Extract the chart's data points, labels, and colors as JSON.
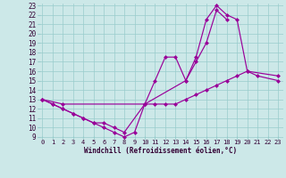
{
  "xlabel": "Windchill (Refroidissement éolien,°C)",
  "bg_color": "#cce8e8",
  "grid_color": "#99cccc",
  "line_color": "#990099",
  "xmin": -0.5,
  "xmax": 23.5,
  "ymin": 8.8,
  "ymax": 23.2,
  "xticks": [
    0,
    1,
    2,
    3,
    4,
    5,
    6,
    7,
    8,
    9,
    10,
    11,
    12,
    13,
    14,
    15,
    16,
    17,
    18,
    19,
    20,
    21,
    22,
    23
  ],
  "yticks": [
    9,
    10,
    11,
    12,
    13,
    14,
    15,
    16,
    17,
    18,
    19,
    20,
    21,
    22,
    23
  ],
  "curve_A_x": [
    0,
    1,
    2,
    3,
    4,
    5,
    6,
    7,
    8,
    9,
    10,
    11,
    12,
    13,
    14,
    15,
    16,
    17,
    18,
    19,
    20,
    21,
    23
  ],
  "curve_A_y": [
    13.0,
    12.5,
    12.0,
    11.5,
    11.0,
    10.5,
    10.0,
    9.5,
    9.0,
    9.5,
    12.5,
    15.0,
    17.5,
    17.5,
    15.0,
    17.5,
    21.5,
    23.0,
    22.0,
    21.5,
    16.0,
    15.5,
    15.0
  ],
  "curve_B_x": [
    0,
    1,
    2,
    3,
    4,
    5,
    6,
    7,
    8,
    10,
    14,
    15,
    16,
    17,
    18
  ],
  "curve_B_y": [
    13.0,
    12.5,
    12.0,
    11.5,
    11.0,
    10.5,
    10.5,
    10.0,
    9.5,
    12.5,
    15.0,
    17.0,
    19.0,
    22.5,
    21.5
  ],
  "curve_C_x": [
    0,
    2,
    10,
    11,
    12,
    13,
    14,
    15,
    16,
    17,
    18,
    19,
    20,
    23
  ],
  "curve_C_y": [
    13.0,
    12.5,
    12.5,
    12.5,
    12.5,
    12.5,
    13.0,
    13.5,
    14.0,
    14.5,
    15.0,
    15.5,
    16.0,
    15.5
  ]
}
